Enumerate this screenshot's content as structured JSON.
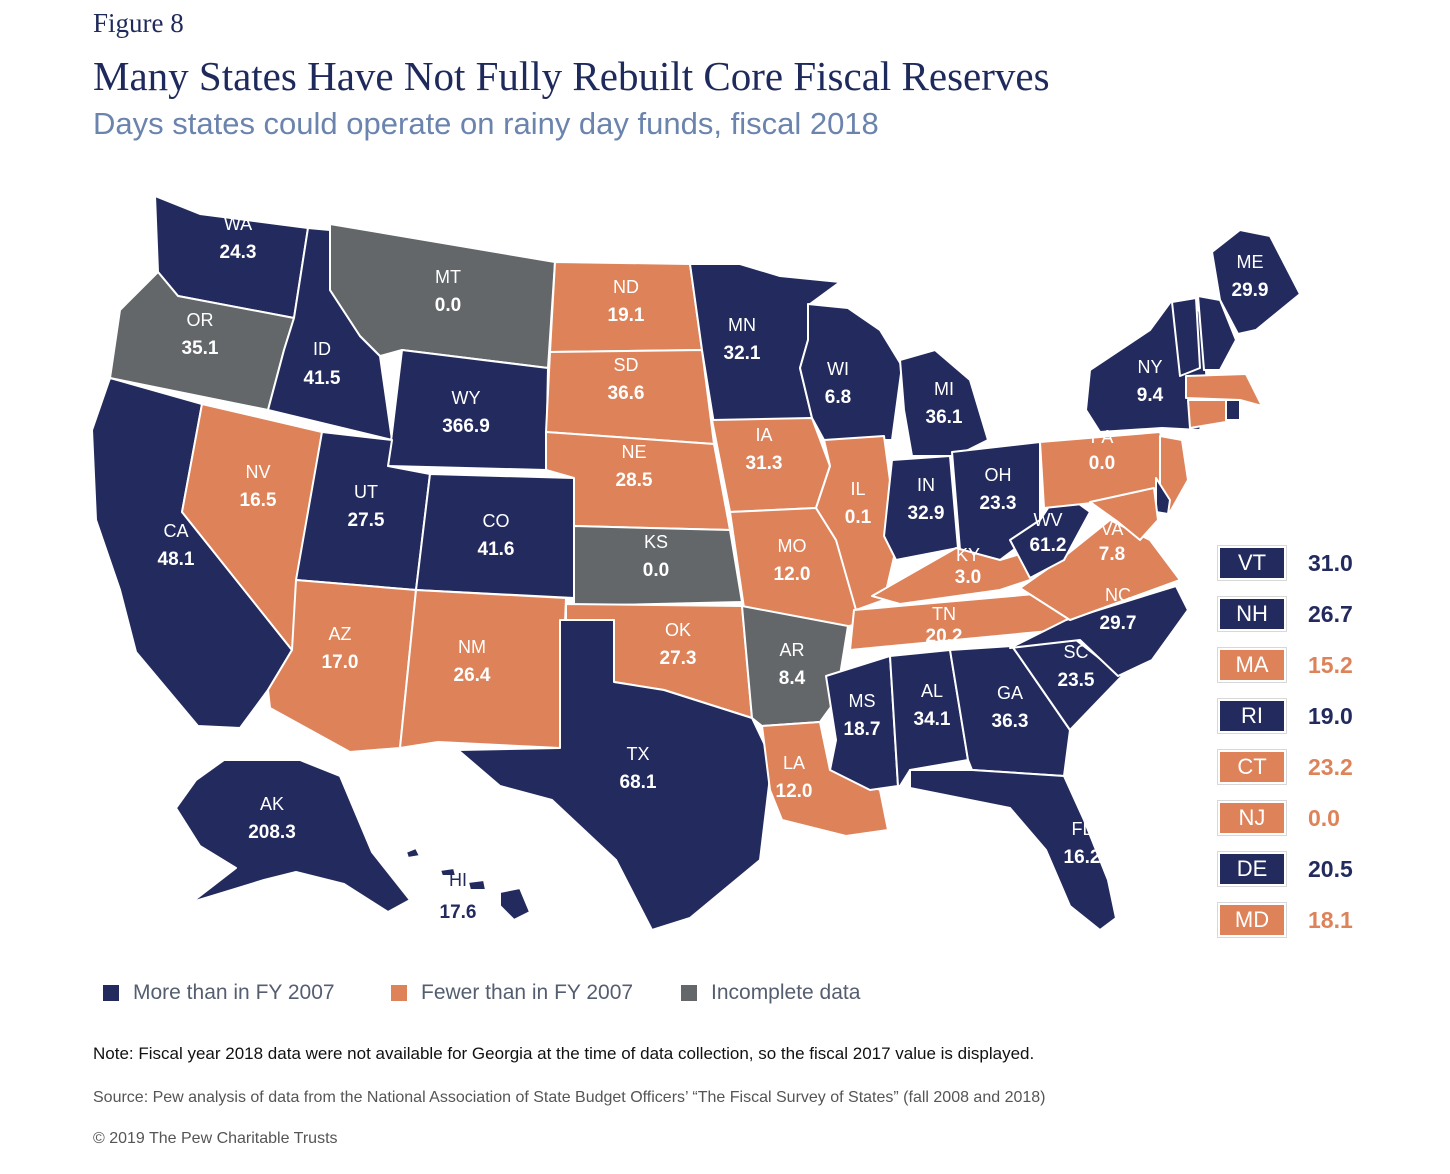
{
  "figure_label": "Figure 8",
  "title": "Many States Have Not Fully Rebuilt Core Fiscal Reserves",
  "subtitle": "Days states could operate on rainy day funds, fiscal 2018",
  "colors": {
    "more": "#232b5e",
    "fewer": "#de8259",
    "incomplete": "#636769",
    "label_text": "#ffffff",
    "sidebar_more_text": "#232b5e",
    "sidebar_fewer_text": "#de8259"
  },
  "legend": [
    {
      "key": "more",
      "label": "More than in FY 2007"
    },
    {
      "key": "fewer",
      "label": "Fewer than in FY 2007"
    },
    {
      "key": "incomplete",
      "label": "Incomplete data"
    }
  ],
  "states": [
    {
      "abbr": "WA",
      "value": "24.3",
      "category": "more"
    },
    {
      "abbr": "OR",
      "value": "35.1",
      "category": "incomplete"
    },
    {
      "abbr": "CA",
      "value": "48.1",
      "category": "more"
    },
    {
      "abbr": "NV",
      "value": "16.5",
      "category": "fewer"
    },
    {
      "abbr": "ID",
      "value": "41.5",
      "category": "more"
    },
    {
      "abbr": "MT",
      "value": "0.0",
      "category": "incomplete"
    },
    {
      "abbr": "WY",
      "value": "366.9",
      "category": "more"
    },
    {
      "abbr": "UT",
      "value": "27.5",
      "category": "more"
    },
    {
      "abbr": "AZ",
      "value": "17.0",
      "category": "fewer"
    },
    {
      "abbr": "CO",
      "value": "41.6",
      "category": "more"
    },
    {
      "abbr": "NM",
      "value": "26.4",
      "category": "fewer"
    },
    {
      "abbr": "ND",
      "value": "19.1",
      "category": "fewer"
    },
    {
      "abbr": "SD",
      "value": "36.6",
      "category": "fewer"
    },
    {
      "abbr": "NE",
      "value": "28.5",
      "category": "fewer"
    },
    {
      "abbr": "KS",
      "value": "0.0",
      "category": "incomplete"
    },
    {
      "abbr": "OK",
      "value": "27.3",
      "category": "fewer"
    },
    {
      "abbr": "TX",
      "value": "68.1",
      "category": "more"
    },
    {
      "abbr": "MN",
      "value": "32.1",
      "category": "more"
    },
    {
      "abbr": "IA",
      "value": "31.3",
      "category": "fewer"
    },
    {
      "abbr": "MO",
      "value": "12.0",
      "category": "fewer"
    },
    {
      "abbr": "AR",
      "value": "8.4",
      "category": "incomplete"
    },
    {
      "abbr": "LA",
      "value": "12.0",
      "category": "fewer"
    },
    {
      "abbr": "WI",
      "value": "6.8",
      "category": "more"
    },
    {
      "abbr": "IL",
      "value": "0.1",
      "category": "fewer"
    },
    {
      "abbr": "MI",
      "value": "36.1",
      "category": "more"
    },
    {
      "abbr": "IN",
      "value": "32.9",
      "category": "more"
    },
    {
      "abbr": "OH",
      "value": "23.3",
      "category": "more"
    },
    {
      "abbr": "KY",
      "value": "3.0",
      "category": "fewer"
    },
    {
      "abbr": "TN",
      "value": "20.2",
      "category": "fewer"
    },
    {
      "abbr": "MS",
      "value": "18.7",
      "category": "more"
    },
    {
      "abbr": "AL",
      "value": "34.1",
      "category": "more"
    },
    {
      "abbr": "GA",
      "value": "36.3",
      "category": "more"
    },
    {
      "abbr": "FL",
      "value": "16.2",
      "category": "more"
    },
    {
      "abbr": "SC",
      "value": "23.5",
      "category": "more"
    },
    {
      "abbr": "NC",
      "value": "29.7",
      "category": "more"
    },
    {
      "abbr": "VA",
      "value": "7.8",
      "category": "fewer"
    },
    {
      "abbr": "WV",
      "value": "61.2",
      "category": "more"
    },
    {
      "abbr": "PA",
      "value": "0.0",
      "category": "fewer"
    },
    {
      "abbr": "NY",
      "value": "9.4",
      "category": "more"
    },
    {
      "abbr": "ME",
      "value": "29.9",
      "category": "more"
    },
    {
      "abbr": "AK",
      "value": "208.3",
      "category": "more"
    },
    {
      "abbr": "HI",
      "value": "17.6",
      "category": "more"
    }
  ],
  "small_states": [
    {
      "abbr": "VT",
      "value": "31.0",
      "category": "more"
    },
    {
      "abbr": "NH",
      "value": "26.7",
      "category": "more"
    },
    {
      "abbr": "MA",
      "value": "15.2",
      "category": "fewer"
    },
    {
      "abbr": "RI",
      "value": "19.0",
      "category": "more"
    },
    {
      "abbr": "CT",
      "value": "23.2",
      "category": "fewer"
    },
    {
      "abbr": "NJ",
      "value": "0.0",
      "category": "fewer"
    },
    {
      "abbr": "DE",
      "value": "20.5",
      "category": "more"
    },
    {
      "abbr": "MD",
      "value": "18.1",
      "category": "fewer"
    }
  ],
  "note": "Note: Fiscal year 2018 data were not available for Georgia at the time of data collection, so the fiscal 2017 value is displayed.",
  "source": "Source: Pew analysis of data from the National Association of State Budget Officers’ “The Fiscal Survey of States” (fall 2008 and 2018)",
  "copyright": "© 2019 The Pew Charitable Trusts"
}
